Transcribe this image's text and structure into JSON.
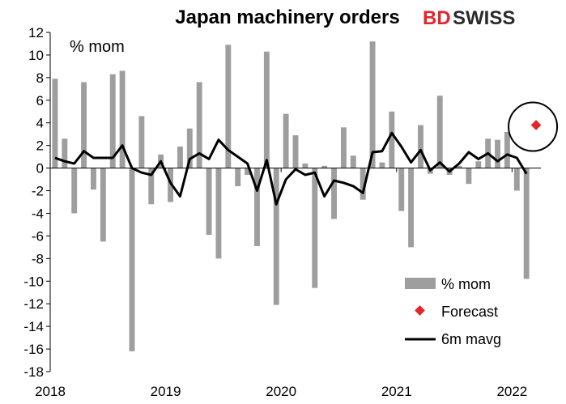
{
  "brand": {
    "part1": "BD",
    "part2": "SWISS"
  },
  "chart_data": {
    "type": "bar",
    "title": "Japan machinery orders",
    "ylabel": "% mom",
    "ylim": [
      -18,
      12
    ],
    "yticks": [
      12,
      10,
      8,
      6,
      4,
      2,
      0,
      -2,
      -4,
      -6,
      -8,
      -10,
      -12,
      -14,
      -16,
      -18
    ],
    "xlim": [
      "2018-01",
      "2022-04"
    ],
    "xtick_labels": [
      "2018",
      "2019",
      "2020",
      "2021",
      "2022"
    ],
    "grid": false,
    "legend": {
      "placement": "bottom-right"
    },
    "series": [
      {
        "name": "% mom",
        "type": "bar",
        "color": "#9e9e9e",
        "x": [
          "2018-01",
          "2018-02",
          "2018-03",
          "2018-04",
          "2018-05",
          "2018-06",
          "2018-07",
          "2018-08",
          "2018-09",
          "2018-10",
          "2018-11",
          "2018-12",
          "2019-01",
          "2019-02",
          "2019-03",
          "2019-04",
          "2019-05",
          "2019-06",
          "2019-07",
          "2019-08",
          "2019-09",
          "2019-10",
          "2019-11",
          "2019-12",
          "2020-01",
          "2020-02",
          "2020-03",
          "2020-04",
          "2020-05",
          "2020-06",
          "2020-07",
          "2020-08",
          "2020-09",
          "2020-10",
          "2020-11",
          "2020-12",
          "2021-01",
          "2021-02",
          "2021-03",
          "2021-04",
          "2021-05",
          "2021-06",
          "2021-07",
          "2021-08",
          "2021-09",
          "2021-10",
          "2021-11",
          "2021-12",
          "2022-01",
          "2022-02"
        ],
        "values": [
          7.9,
          2.6,
          -4.0,
          7.6,
          -1.9,
          -6.5,
          8.3,
          8.6,
          -16.2,
          4.6,
          -3.2,
          1.2,
          -3.0,
          1.9,
          3.5,
          7.6,
          -5.9,
          -8.0,
          10.9,
          -1.6,
          -0.6,
          -6.9,
          10.3,
          -12.1,
          4.8,
          2.9,
          0.4,
          -10.6,
          0.2,
          -4.5,
          3.6,
          1.1,
          -2.8,
          11.2,
          0.5,
          5.0,
          -3.8,
          -7.0,
          3.8,
          -0.5,
          6.4,
          -0.6,
          0.2,
          -1.4,
          0.6,
          2.6,
          2.5,
          3.2,
          -2.0,
          -9.8
        ]
      },
      {
        "name": "Forecast",
        "type": "scatter",
        "color": "#e3262b",
        "x": [
          "2022-03"
        ],
        "values": [
          3.8
        ]
      },
      {
        "name": "6m mavg",
        "type": "line",
        "color": "#000000",
        "x": [
          "2018-01",
          "2018-02",
          "2018-03",
          "2018-04",
          "2018-05",
          "2018-06",
          "2018-07",
          "2018-08",
          "2018-09",
          "2018-10",
          "2018-11",
          "2018-12",
          "2019-01",
          "2019-02",
          "2019-03",
          "2019-04",
          "2019-05",
          "2019-06",
          "2019-07",
          "2019-08",
          "2019-09",
          "2019-10",
          "2019-11",
          "2019-12",
          "2020-01",
          "2020-02",
          "2020-03",
          "2020-04",
          "2020-05",
          "2020-06",
          "2020-07",
          "2020-08",
          "2020-09",
          "2020-10",
          "2020-11",
          "2020-12",
          "2021-01",
          "2021-02",
          "2021-03",
          "2021-04",
          "2021-05",
          "2021-06",
          "2021-07",
          "2021-08",
          "2021-09",
          "2021-10",
          "2021-11",
          "2021-12",
          "2022-01",
          "2022-02"
        ],
        "values": [
          0.9,
          0.6,
          0.4,
          1.5,
          0.9,
          0.9,
          0.9,
          2.0,
          0.0,
          -0.4,
          -0.6,
          0.6,
          -1.3,
          -2.5,
          0.8,
          1.3,
          0.8,
          2.5,
          1.6,
          1.0,
          0.4,
          -2.0,
          0.7,
          -3.2,
          -1.0,
          -0.1,
          -0.6,
          -0.4,
          -2.5,
          -1.1,
          -1.3,
          -1.6,
          -2.2,
          1.4,
          1.5,
          3.1,
          1.9,
          0.5,
          1.6,
          -0.2,
          0.5,
          -0.3,
          0.4,
          1.4,
          0.8,
          1.3,
          0.6,
          1.2,
          0.9,
          -0.5
        ]
      }
    ],
    "annotations": [
      {
        "type": "circle",
        "target": "Forecast"
      }
    ]
  }
}
